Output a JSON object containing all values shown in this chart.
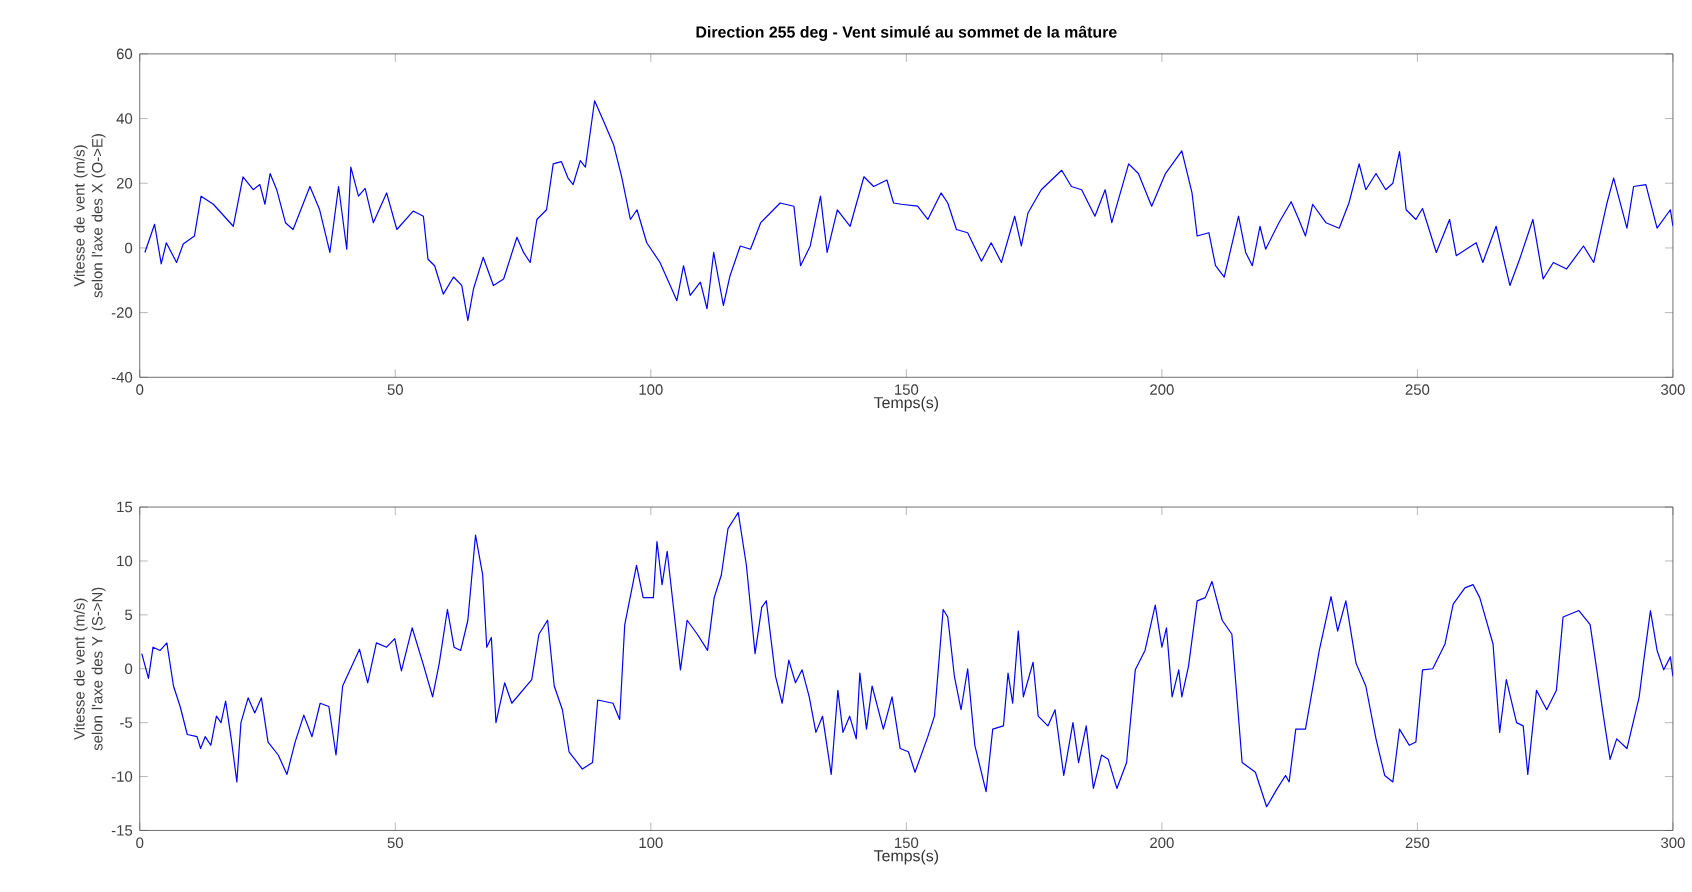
{
  "chart_data": [
    {
      "type": "line",
      "title": "Direction 255 deg - Vent simulé au sommet de la mâture",
      "xlabel": "Temps(s)",
      "ylabel": "Vitesse de vent (m/s) selon l'axe des X (O->E)",
      "color": "#0000ff",
      "xlim": [
        0,
        300
      ],
      "xticks": [
        0,
        50,
        100,
        150,
        200,
        250,
        300
      ],
      "ylim": [
        -40,
        60
      ],
      "yticks": [
        -40,
        -20,
        0,
        20,
        40,
        60
      ],
      "x": [
        1,
        2.9,
        4.2,
        5.2,
        7.2,
        8.5,
        10.7,
        12,
        14.4,
        18.3,
        20.2,
        22.2,
        23.5,
        24.5,
        25.5,
        26.8,
        28.5,
        30,
        33.3,
        35.2,
        37.2,
        38.9,
        40.5,
        41.3,
        42.8,
        44.1,
        45.7,
        48.3,
        50.3,
        53.5,
        55.5,
        56.4,
        57.7,
        59.4,
        61.4,
        63,
        64.2,
        65.3,
        67.2,
        69.2,
        71.2,
        73.8,
        75.1,
        76.4,
        77.7,
        79.6,
        80.9,
        82.5,
        83.8,
        84.8,
        86.2,
        87.2,
        89,
        90.7,
        92.7,
        94.3,
        96,
        97.3,
        99.2,
        101.8,
        103.8,
        105.1,
        106.4,
        107.7,
        109.7,
        111,
        112.3,
        114.2,
        115.5,
        117.5,
        119.5,
        121.5,
        125.3,
        128,
        129.3,
        131.2,
        133.2,
        134.5,
        136.5,
        139,
        141.7,
        143.6,
        146.2,
        147.5,
        149,
        152.2,
        154.2,
        156.8,
        158.1,
        159.8,
        162,
        164.7,
        166.6,
        168.6,
        171.2,
        172.5,
        173.8,
        176.4,
        180.4,
        182.3,
        184.3,
        186.9,
        188.9,
        190.2,
        193.5,
        195.4,
        198,
        200.7,
        203.9,
        205.9,
        206.9,
        209.2,
        210.5,
        212.2,
        215,
        216.4,
        217.7,
        219.2,
        220.3,
        222.9,
        225.3,
        226.8,
        228.1,
        229.5,
        232.1,
        234.7,
        236.6,
        238.6,
        239.9,
        241.9,
        243.8,
        245.2,
        246.5,
        247.8,
        249.7,
        251,
        253.7,
        256.3,
        257.6,
        261.5,
        262.8,
        265.4,
        268.1,
        270,
        272.6,
        274.6,
        276.6,
        279.2,
        282.5,
        284.5,
        287.1,
        288.4,
        291,
        292.3,
        294.7,
        296.9,
        299.5,
        300
      ],
      "values": [
        -1.4,
        7.3,
        -4.9,
        1.6,
        -4.5,
        1.2,
        3.7,
        16,
        13.5,
        6.7,
        22,
        18,
        19.6,
        13.5,
        23,
        18,
        7.8,
        5.7,
        19,
        11.8,
        -1.4,
        19,
        -0.4,
        25,
        16,
        18.4,
        7.8,
        17,
        5.7,
        11.4,
        9.8,
        -3.5,
        -5.5,
        -14.3,
        -9,
        -11.6,
        -22.4,
        -12.7,
        -2.9,
        -11.6,
        -9.6,
        3.3,
        -1.4,
        -4.5,
        8.8,
        11.8,
        26,
        26.7,
        21.6,
        19.6,
        27,
        25,
        45.5,
        39.4,
        32,
        22,
        8.8,
        11.8,
        1.6,
        -4.5,
        -11.6,
        -16.3,
        -5.5,
        -14.7,
        -10.6,
        -18.8,
        -1.4,
        -17.8,
        -8.6,
        0.6,
        -0.4,
        7.8,
        13.9,
        12.9,
        -5.5,
        0.6,
        16,
        -1.4,
        11.8,
        6.7,
        22,
        19,
        21,
        13.9,
        13.5,
        12.9,
        8.8,
        17,
        13.9,
        5.7,
        4.7,
        -4.1,
        1.6,
        -4.5,
        9.8,
        0.6,
        10.8,
        18,
        24,
        19,
        18,
        9.8,
        18,
        7.8,
        26,
        23,
        12.9,
        23,
        30,
        17,
        3.7,
        4.7,
        -5.5,
        -9,
        9.8,
        -1.4,
        -5.5,
        6.7,
        -0.4,
        7.8,
        14.3,
        8.8,
        3.7,
        13.5,
        7.8,
        6.1,
        13.9,
        26,
        18,
        23,
        18,
        20,
        29.8,
        11.8,
        8.8,
        12.2,
        -1.4,
        8.8,
        -2.4,
        1.6,
        -4.5,
        6.7,
        -11.6,
        -3.5,
        8.8,
        -9.6,
        -4.5,
        -6.5,
        0.6,
        -4.5,
        13.9,
        21.6,
        6.1,
        19,
        19.6,
        6.1,
        11.8,
        6.7
      ]
    },
    {
      "type": "line",
      "xlabel": "Temps(s)",
      "ylabel": "Vitesse de vent (m/s) selon l'axe des Y (S->N)",
      "color": "#0000ff",
      "xlim": [
        0,
        300
      ],
      "xticks": [
        0,
        50,
        100,
        150,
        200,
        250,
        300
      ],
      "ylim": [
        -15,
        15
      ],
      "yticks": [
        -15,
        -10,
        -5,
        0,
        5,
        10,
        15
      ],
      "x": [
        0.4,
        1.7,
        2.6,
        4,
        5.3,
        6.6,
        7.9,
        9.3,
        11.2,
        11.9,
        12.8,
        13.9,
        15,
        15.9,
        16.8,
        17.9,
        19,
        19.8,
        21.2,
        22.5,
        23.8,
        25.1,
        27.1,
        28.8,
        30.4,
        32.1,
        33.7,
        35.3,
        37,
        38.4,
        39.7,
        43,
        44.6,
        46.3,
        48.3,
        49.9,
        51.2,
        53.3,
        55.6,
        57.3,
        58.6,
        60.2,
        61.5,
        62.8,
        64.2,
        65.7,
        67.1,
        67.9,
        68.8,
        69.7,
        71.4,
        72.8,
        76.7,
        78.1,
        79.8,
        81.1,
        82.7,
        84,
        86.6,
        88.6,
        89.6,
        92.6,
        93.9,
        94.9,
        97.2,
        98.5,
        100.5,
        101.2,
        102.2,
        103.2,
        105.8,
        107.1,
        109.1,
        111.1,
        112.4,
        113.8,
        115.1,
        117.1,
        118.7,
        120.4,
        121.7,
        122.6,
        124.4,
        125.7,
        127,
        128.3,
        129.6,
        131,
        132.3,
        133.6,
        135.3,
        136.6,
        137.6,
        138.9,
        140.2,
        140.9,
        142.2,
        143.3,
        145.5,
        147.2,
        148.8,
        150.4,
        151.7,
        154.2,
        155.5,
        157.2,
        158.1,
        159.4,
        160.7,
        162,
        163.4,
        165.6,
        166.9,
        169,
        169.9,
        170.8,
        171.9,
        172.9,
        174.8,
        175.8,
        177.7,
        179.1,
        180.8,
        182.6,
        183.7,
        185.2,
        186.6,
        188.2,
        189.5,
        191.2,
        193.1,
        194.8,
        196.7,
        198.7,
        200,
        200.9,
        202,
        203.3,
        203.9,
        205.2,
        206.9,
        208.5,
        209.8,
        211.8,
        213.7,
        215.7,
        218.3,
        220.5,
        222.6,
        224.2,
        224.9,
        226.2,
        228.1,
        230.8,
        233.1,
        234.4,
        236,
        238,
        239.9,
        241.9,
        243.6,
        245.2,
        246.5,
        248.4,
        249.7,
        251,
        253,
        255.4,
        257,
        259.3,
        260.9,
        262.2,
        264.8,
        266.1,
        267.4,
        269.4,
        270.7,
        271.6,
        273.3,
        275.3,
        277.2,
        278.5,
        281.6,
        283.8,
        285.1,
        286.4,
        287.7,
        289,
        291,
        293.4,
        294.3,
        295.6,
        296.9,
        298.2,
        299.5,
        300
      ],
      "values": [
        1.4,
        -0.9,
        2,
        1.7,
        2.4,
        -1.6,
        -3.5,
        -6.1,
        -6.3,
        -7.4,
        -6.3,
        -7.1,
        -4.4,
        -5,
        -3,
        -6.5,
        -10.5,
        -5,
        -2.7,
        -4.1,
        -2.7,
        -6.8,
        -8,
        -9.8,
        -6.8,
        -4.3,
        -6.3,
        -3.2,
        -3.5,
        -8,
        -1.6,
        1.8,
        -1.3,
        2.4,
        2,
        2.8,
        -0.2,
        3.8,
        0.2,
        -2.6,
        0.5,
        5.5,
        2,
        1.7,
        4.5,
        12.4,
        8.7,
        2,
        2.9,
        -5,
        -1.3,
        -3.2,
        -1,
        3.2,
        4.5,
        -1.6,
        -3.8,
        -7.7,
        -9.3,
        -8.7,
        -2.9,
        -3.2,
        -4.7,
        4.1,
        9.6,
        6.6,
        6.6,
        11.8,
        7.8,
        10.9,
        -0.1,
        4.5,
        3.2,
        1.7,
        6.6,
        8.7,
        13,
        14.5,
        9.6,
        1.4,
        5.7,
        6.3,
        -0.7,
        -3.2,
        0.8,
        -1.3,
        -0.1,
        -2.6,
        -5.9,
        -4.4,
        -9.8,
        -2,
        -5.9,
        -4.4,
        -6.5,
        -0.4,
        -5.6,
        -1.6,
        -5.6,
        -2.6,
        -7.4,
        -7.7,
        -9.6,
        -6.3,
        -4.4,
        5.5,
        4.8,
        -0.7,
        -3.8,
        0,
        -7.1,
        -11.4,
        -5.6,
        -5.3,
        -0.4,
        -3.2,
        3.5,
        -2.6,
        0.6,
        -4.4,
        -5.3,
        -3.8,
        -9.9,
        -5,
        -8.7,
        -5.3,
        -11.1,
        -8,
        -8.4,
        -11.1,
        -8.7,
        -0.1,
        1.7,
        5.9,
        2,
        3.8,
        -2.6,
        -0.1,
        -2.6,
        0.2,
        6.3,
        6.6,
        8.1,
        4.5,
        3.2,
        -8.7,
        -9.6,
        -12.8,
        -11.1,
        -9.9,
        -10.5,
        -5.6,
        -5.6,
        1.7,
        6.7,
        3.5,
        6.3,
        0.5,
        -1.6,
        -6.5,
        -9.9,
        -10.5,
        -5.6,
        -7.1,
        -6.8,
        -0.1,
        0,
        2.3,
        6,
        7.5,
        7.8,
        6.6,
        2.3,
        -5.9,
        -1,
        -5,
        -5.3,
        -9.8,
        -2,
        -3.8,
        -2,
        4.8,
        5.4,
        4.1,
        -0.1,
        -4.4,
        -8.4,
        -6.5,
        -7.4,
        -2.6,
        0.8,
        5.4,
        1.7,
        -0.1,
        1.1,
        -0.7
      ]
    }
  ]
}
